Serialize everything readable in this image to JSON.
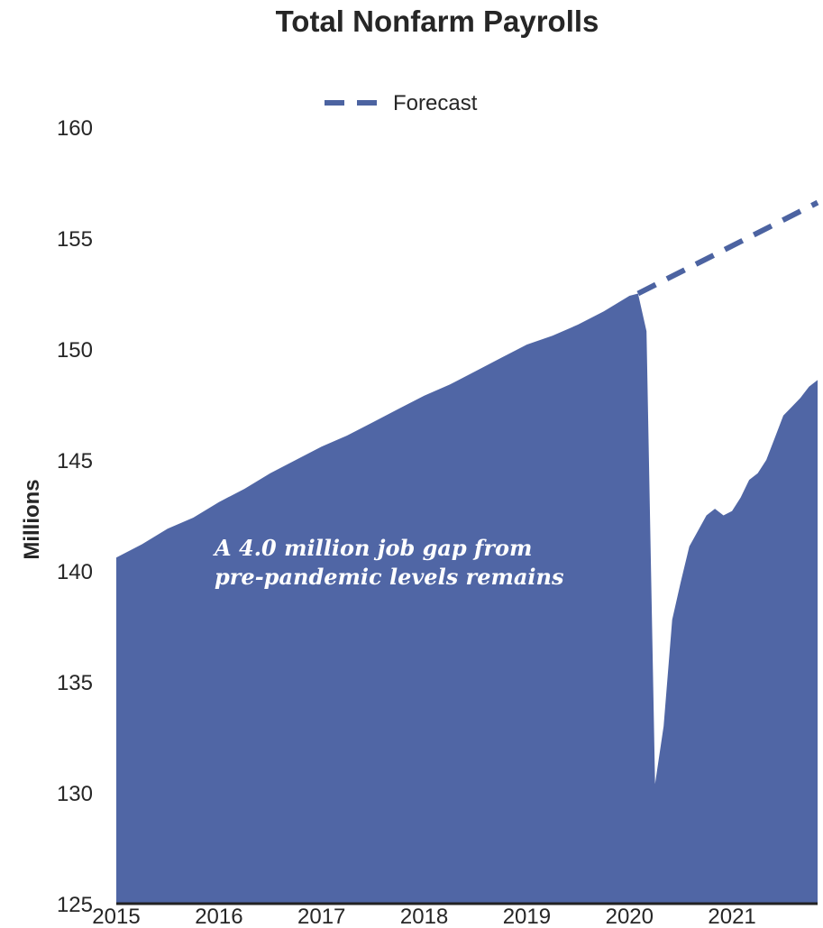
{
  "chart_data": {
    "type": "area",
    "title": "Total Nonfarm Payrolls",
    "ylabel": "Millions",
    "xlabel": "",
    "ylim": [
      125,
      160
    ],
    "y_ticks": [
      "125",
      "130",
      "135",
      "140",
      "145",
      "150",
      "155",
      "160"
    ],
    "x_ticks": [
      "2015",
      "2016",
      "2017",
      "2018",
      "2019",
      "2020",
      "2021"
    ],
    "x_range": [
      "2015-01",
      "2021-11"
    ],
    "grid": false,
    "legend_position": "top-center",
    "legend": [
      {
        "label": "Forecast",
        "style": "dashed"
      }
    ],
    "annotation": {
      "lines": [
        "A 4.0 million job gap from",
        "pre-pandemic levels remains"
      ]
    },
    "colors": {
      "area": "#5066a5",
      "forecast": "#4c63a1"
    },
    "series": [
      {
        "type": "area",
        "x": [
          "2015-01",
          "2015-04",
          "2015-07",
          "2015-10",
          "2016-01",
          "2016-04",
          "2016-07",
          "2016-10",
          "2017-01",
          "2017-04",
          "2017-07",
          "2017-10",
          "2018-01",
          "2018-04",
          "2018-07",
          "2018-10",
          "2019-01",
          "2019-04",
          "2019-07",
          "2019-10",
          "2020-01",
          "2020-02",
          "2020-03",
          "2020-04",
          "2020-05",
          "2020-06",
          "2020-07",
          "2020-08",
          "2020-09",
          "2020-10",
          "2020-11",
          "2020-12",
          "2021-01",
          "2021-02",
          "2021-03",
          "2021-04",
          "2021-05",
          "2021-06",
          "2021-07",
          "2021-08",
          "2021-09",
          "2021-10",
          "2021-11"
        ],
        "values": [
          140.6,
          141.2,
          141.9,
          142.4,
          143.1,
          143.7,
          144.4,
          145.0,
          145.6,
          146.1,
          146.7,
          147.3,
          147.9,
          148.4,
          149.0,
          149.6,
          150.2,
          150.6,
          151.1,
          151.7,
          152.4,
          152.5,
          150.8,
          130.4,
          133.0,
          137.8,
          139.5,
          141.1,
          141.8,
          142.5,
          142.8,
          142.5,
          142.7,
          143.3,
          144.1,
          144.4,
          145.0,
          146.0,
          147.0,
          147.4,
          147.8,
          148.3,
          148.6
        ]
      },
      {
        "type": "line",
        "name": "Forecast",
        "x": [
          "2020-02",
          "2021-11"
        ],
        "values": [
          152.5,
          156.6
        ]
      }
    ]
  }
}
